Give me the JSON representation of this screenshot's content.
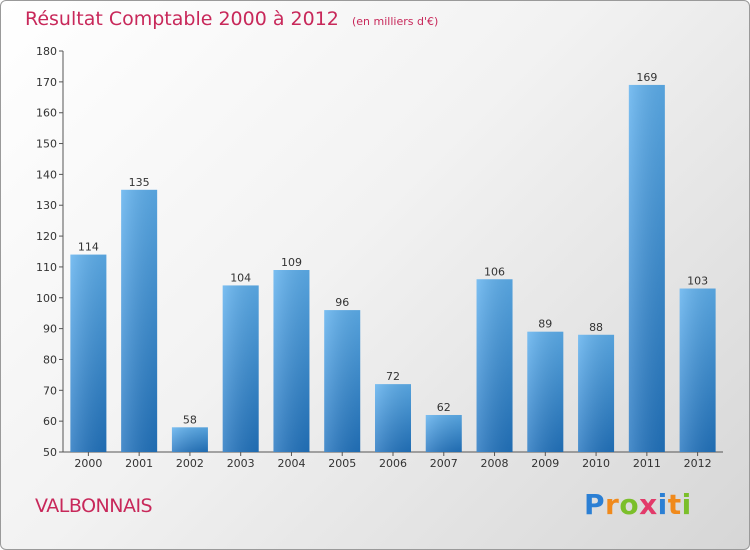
{
  "chart_data": {
    "type": "bar",
    "title": "Résultat Comptable 2000 à 2012",
    "subtitle": "(en milliers d'€)",
    "categories": [
      "2000",
      "2001",
      "2002",
      "2003",
      "2004",
      "2005",
      "2006",
      "2007",
      "2008",
      "2009",
      "2010",
      "2011",
      "2012"
    ],
    "values": [
      114,
      135,
      58,
      104,
      109,
      96,
      72,
      62,
      106,
      89,
      88,
      169,
      103
    ],
    "ylim": [
      50,
      180
    ],
    "yticks": [
      50,
      60,
      70,
      80,
      90,
      100,
      110,
      120,
      130,
      140,
      150,
      160,
      170,
      180
    ],
    "xlabel": "",
    "ylabel": "",
    "grid": false,
    "bar_color": "#3a8fd6"
  },
  "footer": {
    "commune": "VALBONNAIS",
    "logo_letters": [
      {
        "ch": "P",
        "color": "#2b7fd4"
      },
      {
        "ch": "r",
        "color": "#f08a1c"
      },
      {
        "ch": "o",
        "color": "#7bbf2a"
      },
      {
        "ch": "x",
        "color": "#e23a6a"
      },
      {
        "ch": "i",
        "color": "#2b7fd4"
      },
      {
        "ch": "t",
        "color": "#f08a1c"
      },
      {
        "ch": "i",
        "color": "#7bbf2a"
      }
    ]
  }
}
